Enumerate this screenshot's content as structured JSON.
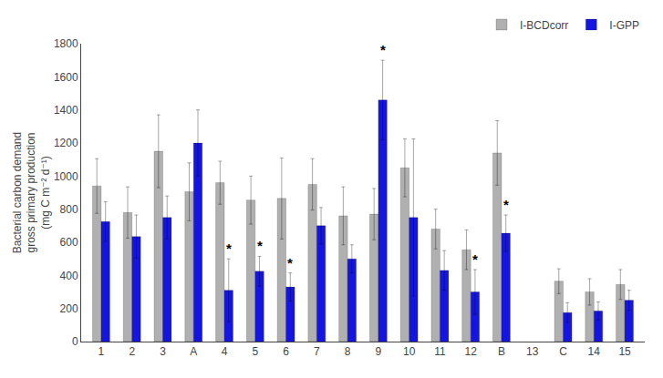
{
  "chart_data": {
    "type": "bar",
    "categories": [
      "1",
      "2",
      "3",
      "A",
      "4",
      "5",
      "6",
      "7",
      "8",
      "9",
      "10",
      "11",
      "12",
      "B",
      "13",
      "C",
      "14",
      "15"
    ],
    "series": [
      {
        "name": "I-BCDcorr",
        "color": "#b0b0b0",
        "values": [
          940,
          780,
          1150,
          905,
          960,
          855,
          865,
          950,
          760,
          770,
          1050,
          680,
          555,
          1140,
          null,
          365,
          300,
          345
        ],
        "error_upper": [
          165,
          155,
          220,
          175,
          130,
          145,
          245,
          155,
          175,
          155,
          175,
          120,
          120,
          195,
          null,
          75,
          80,
          90
        ],
        "error_lower": [
          165,
          155,
          220,
          175,
          130,
          145,
          245,
          155,
          175,
          155,
          175,
          120,
          120,
          195,
          null,
          75,
          80,
          90
        ]
      },
      {
        "name": "I-GPP",
        "color": "#1515e0",
        "values": [
          725,
          635,
          750,
          1200,
          310,
          425,
          330,
          700,
          500,
          1460,
          750,
          430,
          300,
          655,
          null,
          175,
          185,
          250
        ],
        "error_upper": [
          120,
          130,
          130,
          200,
          190,
          90,
          85,
          110,
          85,
          240,
          475,
          120,
          135,
          110,
          null,
          60,
          55,
          60
        ],
        "error_lower": [
          120,
          130,
          130,
          200,
          190,
          90,
          85,
          110,
          85,
          240,
          475,
          120,
          135,
          110,
          null,
          60,
          55,
          60
        ]
      }
    ],
    "annotations": [
      {
        "category": "4",
        "series": "I-GPP",
        "text": "*"
      },
      {
        "category": "5",
        "series": "I-GPP",
        "text": "*"
      },
      {
        "category": "6",
        "series": "I-GPP",
        "text": "*"
      },
      {
        "category": "9",
        "series": "I-GPP",
        "text": "*"
      },
      {
        "category": "12",
        "series": "I-GPP",
        "text": "*"
      },
      {
        "category": "B",
        "series": "I-GPP",
        "text": "*"
      }
    ],
    "ylabel": "Bacterial carbon demand\ngross primary production\n(mg C m⁻² d⁻¹)",
    "ylim": [
      0,
      1800
    ],
    "yticks": [
      0,
      200,
      400,
      600,
      800,
      1000,
      1200,
      1400,
      1600,
      1800
    ],
    "grid": false,
    "legend": "upper right"
  }
}
